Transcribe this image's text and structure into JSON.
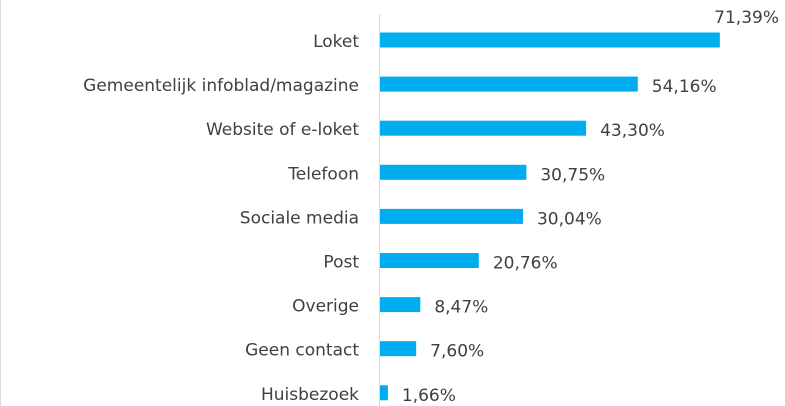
{
  "chart_data": {
    "type": "bar",
    "orientation": "horizontal",
    "categories": [
      "Loket",
      "Gemeentelijk infoblad/magazine",
      "Website of e-loket",
      "Telefoon",
      "Sociale media",
      "Post",
      "Overige",
      "Geen contact",
      "Huisbezoek"
    ],
    "values": [
      71.39,
      54.16,
      43.3,
      30.75,
      30.04,
      20.76,
      8.47,
      7.6,
      1.66
    ],
    "value_labels": [
      "71,39%",
      "54,16%",
      "43,30%",
      "30,75%",
      "30,04%",
      "20,76%",
      "8,47%",
      "7,60%",
      "1,66%"
    ],
    "color": "#00aeef"
  }
}
